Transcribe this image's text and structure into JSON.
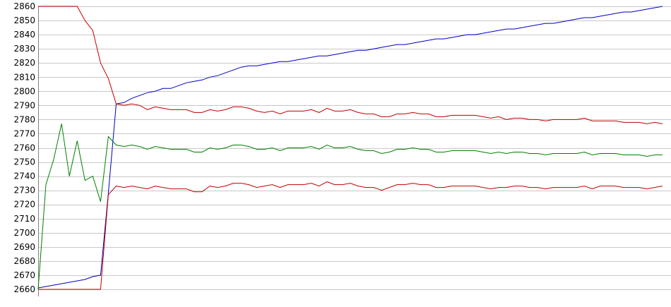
{
  "chart_data": {
    "type": "line",
    "title": "",
    "xlabel": "",
    "ylabel": "",
    "ylim": [
      2660,
      2860
    ],
    "yticks": [
      2660,
      2670,
      2680,
      2690,
      2700,
      2710,
      2720,
      2730,
      2740,
      2750,
      2760,
      2770,
      2780,
      2790,
      2800,
      2810,
      2820,
      2830,
      2840,
      2850,
      2860
    ],
    "grid": true,
    "legend": "none",
    "x": [
      1,
      2,
      3,
      4,
      5,
      6,
      7,
      8,
      9,
      10,
      11,
      12,
      13,
      14,
      15,
      16,
      17,
      18,
      19,
      20,
      21,
      22,
      23,
      24,
      25,
      26,
      27,
      28,
      29,
      30,
      31,
      32,
      33,
      34,
      35,
      36,
      37,
      38,
      39,
      40,
      41,
      42,
      43,
      44,
      45,
      46,
      47,
      48,
      49,
      50,
      51,
      52,
      53,
      54,
      55,
      56,
      57,
      58,
      59,
      60,
      61,
      62,
      63,
      64,
      65,
      66,
      67,
      68,
      69,
      70,
      71,
      72,
      73,
      74,
      75,
      76,
      77,
      78,
      79,
      80,
      81
    ],
    "series": [
      {
        "color": "#0000c0",
        "values": [
          2661,
          2662,
          2663,
          2664,
          2665,
          2666,
          2667,
          2669,
          2670,
          2728,
          2791,
          2792,
          2795,
          2797,
          2799,
          2800,
          2802,
          2802,
          2804,
          2806,
          2807,
          2808,
          2810,
          2811,
          2813,
          2815,
          2817,
          2818,
          2818,
          2819,
          2820,
          2821,
          2821,
          2822,
          2823,
          2824,
          2825,
          2825,
          2826,
          2827,
          2828,
          2829,
          2829,
          2830,
          2831,
          2832,
          2833,
          2833,
          2834,
          2835,
          2836,
          2837,
          2837,
          2838,
          2839,
          2840,
          2840,
          2841,
          2842,
          2843,
          2844,
          2844,
          2845,
          2846,
          2847,
          2848,
          2848,
          2849,
          2850,
          2851,
          2852,
          2852,
          2853,
          2854,
          2855,
          2856,
          2856,
          2857,
          2858,
          2859,
          2860
        ]
      },
      {
        "color": "#c00000",
        "values": [
          2860,
          2860,
          2860,
          2860,
          2860,
          2860,
          2850,
          2843,
          2820,
          2809,
          2791,
          2790,
          2791,
          2790,
          2787,
          2789,
          2788,
          2787,
          2787,
          2787,
          2785,
          2785,
          2787,
          2786,
          2787,
          2789,
          2789,
          2788,
          2786,
          2785,
          2786,
          2784,
          2786,
          2786,
          2786,
          2787,
          2785,
          2788,
          2786,
          2786,
          2787,
          2785,
          2784,
          2784,
          2782,
          2782,
          2784,
          2784,
          2785,
          2784,
          2784,
          2782,
          2782,
          2783,
          2783,
          2783,
          2783,
          2782,
          2781,
          2782,
          2780,
          2781,
          2781,
          2780,
          2780,
          2779,
          2780,
          2780,
          2780,
          2780,
          2781,
          2779,
          2779,
          2779,
          2779,
          2778,
          2778,
          2778,
          2777,
          2778,
          2777
        ]
      },
      {
        "color": "#008000",
        "values": [
          2660,
          2734,
          2752,
          2777,
          2740,
          2765,
          2737,
          2740,
          2722,
          2768,
          2762,
          2761,
          2762,
          2761,
          2759,
          2761,
          2760,
          2759,
          2759,
          2759,
          2757,
          2757,
          2760,
          2759,
          2760,
          2762,
          2762,
          2761,
          2759,
          2759,
          2760,
          2758,
          2760,
          2760,
          2760,
          2761,
          2759,
          2762,
          2760,
          2760,
          2761,
          2759,
          2758,
          2758,
          2756,
          2757,
          2759,
          2759,
          2760,
          2759,
          2759,
          2757,
          2757,
          2758,
          2758,
          2758,
          2758,
          2757,
          2756,
          2757,
          2756,
          2757,
          2757,
          2756,
          2756,
          2755,
          2756,
          2756,
          2756,
          2756,
          2757,
          2755,
          2756,
          2756,
          2756,
          2755,
          2755,
          2755,
          2754,
          2755,
          2755
        ]
      },
      {
        "color": "#c00000",
        "values": [
          2660,
          2660,
          2660,
          2660,
          2660,
          2660,
          2660,
          2660,
          2660,
          2727,
          2733,
          2732,
          2733,
          2732,
          2731,
          2733,
          2732,
          2731,
          2731,
          2731,
          2729,
          2729,
          2733,
          2732,
          2733,
          2735,
          2735,
          2734,
          2732,
          2733,
          2734,
          2732,
          2734,
          2734,
          2734,
          2735,
          2733,
          2736,
          2734,
          2734,
          2735,
          2733,
          2732,
          2732,
          2730,
          2732,
          2734,
          2734,
          2735,
          2734,
          2734,
          2732,
          2732,
          2733,
          2733,
          2733,
          2733,
          2732,
          2731,
          2732,
          2732,
          2733,
          2733,
          2732,
          2732,
          2731,
          2732,
          2732,
          2732,
          2732,
          2733,
          2731,
          2733,
          2733,
          2733,
          2732,
          2732,
          2732,
          2731,
          2732,
          2733
        ]
      }
    ]
  }
}
